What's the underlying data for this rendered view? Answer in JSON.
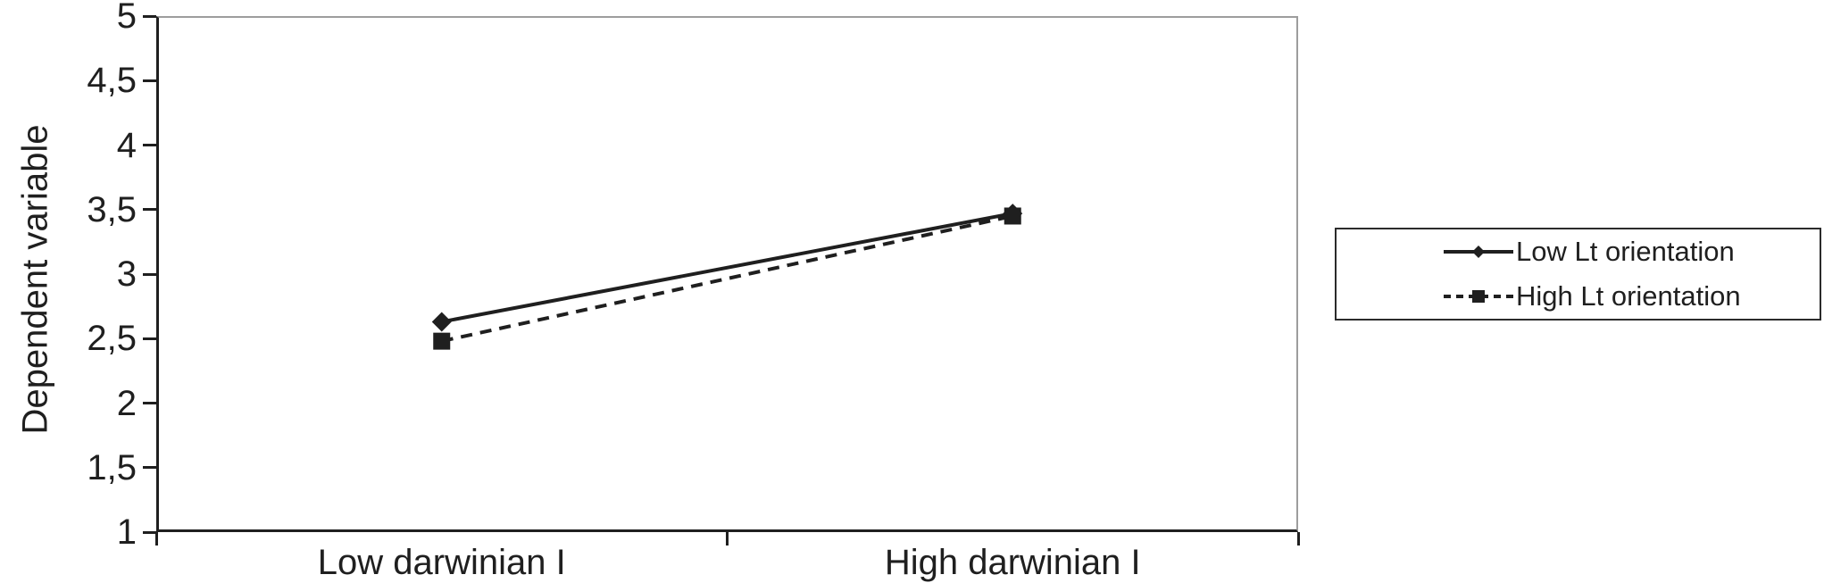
{
  "chart_data": {
    "type": "line",
    "title": "",
    "categories": [
      "Low darwinian I",
      "High darwinian I"
    ],
    "series": [
      {
        "name": "Low Lt orientation",
        "values": [
          2.63,
          3.47
        ],
        "style": "solid",
        "marker": "diamond"
      },
      {
        "name": "High Lt orientation",
        "values": [
          2.48,
          3.45
        ],
        "style": "dashed",
        "marker": "square"
      }
    ],
    "xlabel": "",
    "ylabel": "Dependent variable",
    "ylim": [
      1,
      5
    ],
    "ytick_step": 0.5,
    "yticks": [
      "5",
      "4,5",
      "4",
      "3,5",
      "3",
      "2,5",
      "2",
      "1,5",
      "1"
    ],
    "decimal_separator": ",",
    "grid": false,
    "legend_position": "right-outside",
    "line_color": "#1f1f1f",
    "plot_border_color": "#9d9d9d",
    "axis_color": "#1f1f1f",
    "background_color": "#ffffff"
  }
}
